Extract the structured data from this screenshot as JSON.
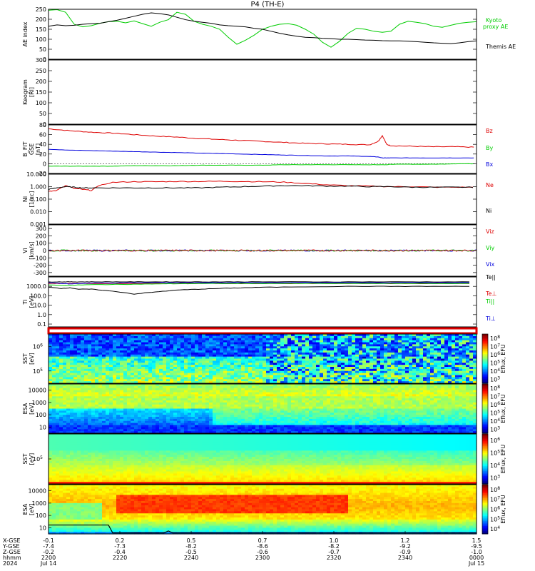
{
  "title": "P4 (TH-E)",
  "colors": {
    "red": "#dd0000",
    "green": "#00cc00",
    "blue": "#0000dd",
    "black": "#000000",
    "lightgreen": "#33dd33"
  },
  "chart_data": [
    {
      "type": "line",
      "id": "ae",
      "ylabel": "AE index",
      "ylim": [
        0,
        250
      ],
      "yticks": [
        "0",
        "50",
        "100",
        "150",
        "200",
        "250"
      ],
      "x": [
        0,
        0.02,
        0.04,
        0.06,
        0.08,
        0.1,
        0.12,
        0.14,
        0.16,
        0.18,
        0.2,
        0.22,
        0.24,
        0.26,
        0.28,
        0.3,
        0.32,
        0.34,
        0.36,
        0.38,
        0.4,
        0.42,
        0.44,
        0.46,
        0.48,
        0.5,
        0.52,
        0.54,
        0.56,
        0.58,
        0.6,
        0.62,
        0.64,
        0.66,
        0.68,
        0.7,
        0.72,
        0.74,
        0.76,
        0.78,
        0.8,
        0.82,
        0.84,
        0.86,
        0.88,
        0.9,
        0.92,
        0.94,
        0.96,
        0.98,
        1.0
      ],
      "series": [
        {
          "name": "Kyoto proxy AE",
          "color": "#00cc00",
          "values": [
            245,
            248,
            235,
            175,
            162,
            168,
            180,
            188,
            190,
            182,
            192,
            178,
            165,
            185,
            198,
            235,
            225,
            190,
            175,
            165,
            150,
            110,
            75,
            95,
            120,
            150,
            165,
            175,
            178,
            170,
            150,
            125,
            85,
            60,
            90,
            130,
            155,
            150,
            140,
            135,
            140,
            175,
            190,
            185,
            178,
            165,
            160,
            170,
            180,
            185,
            188
          ]
        },
        {
          "name": "Themis AE",
          "color": "#000000",
          "values": [
            165,
            172,
            168,
            170,
            175,
            178,
            180,
            188,
            195,
            205,
            215,
            225,
            232,
            228,
            222,
            210,
            198,
            190,
            185,
            180,
            172,
            168,
            165,
            162,
            155,
            150,
            140,
            130,
            122,
            115,
            110,
            108,
            105,
            103,
            100,
            100,
            98,
            96,
            95,
            93,
            92,
            92,
            90,
            88,
            85,
            82,
            80,
            78,
            82,
            88,
            92
          ]
        }
      ]
    },
    {
      "type": "line",
      "id": "keo",
      "ylabel": "Keogram",
      "ylabel2": "[Rl]",
      "ylim": [
        0,
        300
      ],
      "yticks": [
        "0",
        "50",
        "100",
        "150",
        "200",
        "250",
        "300"
      ]
    },
    {
      "type": "line",
      "id": "bfield",
      "ylabel": "B_FIT",
      "ylabel2": "GSE",
      "ylabel3": "[nT]",
      "ylim": [
        -20,
        80
      ],
      "yticks": [
        "-20",
        "0",
        "20",
        "40",
        "60",
        "80"
      ],
      "x": [
        0,
        0.05,
        0.1,
        0.15,
        0.2,
        0.25,
        0.3,
        0.35,
        0.4,
        0.45,
        0.5,
        0.55,
        0.6,
        0.65,
        0.7,
        0.75,
        0.77,
        0.78,
        0.79,
        0.8,
        0.85,
        0.9,
        0.95,
        1.0
      ],
      "series": [
        {
          "name": "Bz",
          "color": "#dd0000",
          "values": [
            72,
            68,
            65,
            63,
            60,
            57,
            55,
            52,
            50,
            48,
            46,
            44,
            42,
            41,
            40,
            39,
            46,
            58,
            40,
            37,
            36,
            35,
            35,
            34
          ]
        },
        {
          "name": "By",
          "color": "#00cc00",
          "values": [
            -5,
            -5,
            -5,
            -5,
            -4,
            -4,
            -4,
            -3,
            -3,
            -3,
            -3,
            -2,
            -2,
            -2,
            -2,
            -2,
            -2,
            -2,
            -2,
            -1,
            -1,
            -1,
            0,
            0
          ]
        },
        {
          "name": "Bx",
          "color": "#0000dd",
          "values": [
            30,
            28,
            27,
            26,
            25,
            24,
            23,
            22,
            21,
            20,
            19,
            18,
            17,
            16,
            16,
            15,
            14,
            12,
            12,
            12,
            12,
            12,
            12,
            12
          ]
        }
      ]
    },
    {
      "type": "line",
      "id": "density",
      "ylabel": "Ni",
      "ylabel2": "[1/cc]",
      "log": true,
      "ylim": [
        0.001,
        10
      ],
      "yticks": [
        "0.001",
        "0.010",
        "0.100",
        "1.000",
        "10.000"
      ],
      "x": [
        0,
        0.02,
        0.04,
        0.06,
        0.08,
        0.1,
        0.15,
        0.2,
        0.25,
        0.3,
        0.35,
        0.4,
        0.45,
        0.5,
        0.55,
        0.6,
        0.65,
        0.7,
        0.75,
        0.8,
        0.85,
        0.9,
        0.95,
        1.0
      ],
      "series": [
        {
          "name": "Ne",
          "color": "#dd0000",
          "values": [
            0.4,
            0.5,
            1.2,
            0.7,
            0.6,
            0.5,
            2.2,
            2.5,
            2.5,
            2.6,
            2.6,
            2.7,
            2.6,
            2.5,
            2.3,
            1.8,
            1.4,
            1.2,
            1.1,
            1.0,
            1.0,
            0.9,
            0.9,
            0.9
          ]
        },
        {
          "name": "Ni",
          "color": "#000000",
          "values": [
            0.6,
            0.8,
            1.0,
            0.9,
            0.8,
            0.8,
            0.8,
            0.8,
            0.8,
            0.8,
            0.8,
            0.9,
            1.0,
            1.1,
            1.2,
            1.2,
            1.1,
            1.1,
            1.0,
            1.0,
            0.9,
            0.9,
            0.9,
            0.9
          ]
        }
      ]
    },
    {
      "type": "line",
      "id": "velocity",
      "ylabel": "Vi",
      "ylabel2": "[km/s]",
      "ylim": [
        -350,
        350
      ],
      "yticks": [
        "-300",
        "-200",
        "-100",
        "0",
        "100",
        "200",
        "300"
      ],
      "series": [
        {
          "name": "Viz",
          "color": "#dd0000",
          "mean": 0
        },
        {
          "name": "Viy",
          "color": "#00cc00",
          "mean": 0
        },
        {
          "name": "Vix",
          "color": "#0000dd",
          "mean": 0
        }
      ]
    },
    {
      "type": "line",
      "id": "temp",
      "ylabel": "Ti",
      "ylabel2": "[eV]",
      "log": true,
      "ylim": [
        0.05,
        10000
      ],
      "yticks": [
        "0.1",
        "1.0",
        "10.0",
        "100.0",
        "1000.0"
      ],
      "x": [
        0,
        0.03,
        0.05,
        0.07,
        0.1,
        0.15,
        0.2,
        0.25,
        0.3,
        0.35,
        0.4,
        0.45,
        0.5,
        0.6,
        0.7,
        0.8,
        0.9,
        1.0
      ],
      "series": [
        {
          "name": "Te||",
          "color": "#000000",
          "values": [
            3000,
            3000,
            3000,
            3000,
            3000,
            3000,
            3000,
            3000,
            3000,
            3000,
            3000,
            3000,
            3000,
            3000,
            3000,
            3000,
            3000,
            3000
          ]
        },
        {
          "name": "Te⊥",
          "color": "#dd0000",
          "values": [
            2000,
            2000,
            2000,
            2000,
            2000,
            2000,
            2000,
            2000,
            2000,
            2000,
            2000,
            2000,
            2000,
            2000,
            2000,
            2000,
            2000,
            2000
          ]
        },
        {
          "name": "Ti||",
          "color": "#00cc00",
          "values": [
            1500,
            1200,
            1300,
            1400,
            1500,
            1600,
            1700,
            1800,
            1900,
            2000,
            2000,
            2000,
            2000,
            2000,
            2000,
            2000,
            2000,
            2000
          ]
        },
        {
          "name": "Ti⊥",
          "color": "#0000dd",
          "values": [
            2500,
            2000,
            1800,
            2000,
            2200,
            2300,
            2400,
            2500,
            2500,
            2500,
            2500,
            2500,
            2500,
            2500,
            2500,
            2500,
            2500,
            2500
          ]
        },
        {
          "name": "Ti",
          "color": "#000000",
          "values": [
            800,
            600,
            700,
            500,
            500,
            300,
            150,
            250,
            400,
            500,
            600,
            700,
            800,
            900,
            1000,
            1000,
            1000,
            1000
          ]
        }
      ]
    },
    {
      "type": "heatmap",
      "id": "sst_e",
      "ylabel": "SST",
      "ylabel2": "[eV]",
      "yticks": [
        "10^5",
        "10^6"
      ],
      "cbar_label": "Eflux, EFU",
      "cbar_ticks": [
        "10^3",
        "10^4",
        "10^5",
        "10^6",
        "10^7",
        "10^8"
      ]
    },
    {
      "type": "heatmap",
      "id": "esa_e",
      "ylabel": "ESA",
      "ylabel2": "[eV]",
      "yticks": [
        "10",
        "100",
        "1000",
        "10000"
      ],
      "cbar_label": "Eflux, EFU",
      "cbar_ticks": [
        "10^3",
        "10^4",
        "10^5",
        "10^6",
        "10^7",
        "10^8"
      ]
    },
    {
      "type": "heatmap",
      "id": "sst_i",
      "ylabel": "SST",
      "ylabel2": "[eV]",
      "yticks": [
        "10^5"
      ],
      "cbar_label": "Eflux, EFU",
      "cbar_ticks": [
        "10^3",
        "10^4",
        "10^5",
        "10^6"
      ]
    },
    {
      "type": "heatmap",
      "id": "esa_i",
      "ylabel": "ESA",
      "ylabel2": "[eV]",
      "yticks": [
        "10",
        "100",
        "1000",
        "10000"
      ],
      "cbar_label": "Eflux, EFU",
      "cbar_ticks": [
        "10^4",
        "10^5",
        "10^6",
        "10^7",
        "10^8"
      ]
    }
  ],
  "xaxis": {
    "row_labels": [
      "X-GSE",
      "Y-GSE",
      "Z-GSE",
      "hhmm",
      "2024"
    ],
    "ticks": [
      {
        "pos": 0.0,
        "vals": [
          "-0.1",
          "-7.4",
          "-0.2",
          "2200",
          "Jul 14"
        ]
      },
      {
        "pos": 0.2,
        "vals": [
          "0.2",
          "-7.3",
          "-0.4",
          "2220",
          ""
        ]
      },
      {
        "pos": 0.4,
        "vals": [
          "0.5",
          "-8.2",
          "-0.5",
          "2240",
          ""
        ]
      },
      {
        "pos": 0.6,
        "vals": [
          "0.7",
          "-8.6",
          "-0.6",
          "2300",
          ""
        ]
      },
      {
        "pos": 0.8,
        "vals": [
          "1.0",
          "-8.2",
          "-0.7",
          "2320",
          ""
        ]
      },
      {
        "pos": 1.0,
        "vals": [
          "1.2",
          "-9.2",
          "-0.9",
          "2340",
          ""
        ]
      },
      {
        "pos": 1.2,
        "vals": [
          "1.5",
          "-9.5",
          "-1.0",
          "0000",
          "Jul 15"
        ]
      }
    ]
  }
}
